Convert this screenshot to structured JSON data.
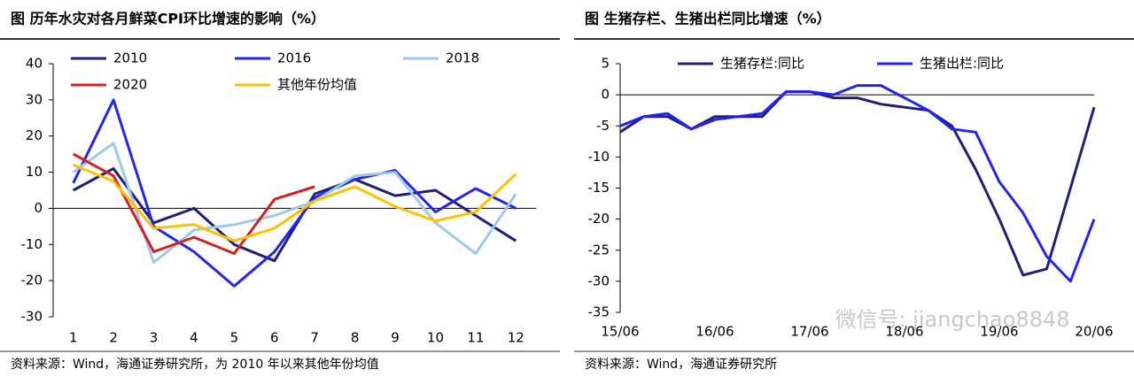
{
  "chart_data": [
    {
      "type": "line",
      "title": "图 历年水灾对各月鲜菜CPI环比增速的影响（%）",
      "categories": [
        "1",
        "2",
        "3",
        "4",
        "5",
        "6",
        "7",
        "8",
        "9",
        "10",
        "11",
        "12"
      ],
      "series": [
        {
          "name": "2010",
          "color": "#1f1f7a",
          "values": [
            5,
            11,
            -4,
            0,
            -10,
            -14.5,
            4,
            8,
            3.5,
            5,
            -2,
            -9
          ]
        },
        {
          "name": "2016",
          "color": "#2424f0",
          "values": [
            7,
            30,
            -5,
            -12,
            -21.5,
            -12,
            3,
            8,
            10.5,
            -1,
            5.5,
            0
          ]
        },
        {
          "name": "2018",
          "color": "#9ecae8",
          "values": [
            10,
            18,
            -15,
            -6,
            -4.5,
            -2,
            2,
            9,
            10,
            -4,
            -12.5,
            4
          ]
        },
        {
          "name": "2020",
          "color": "#d42020",
          "values": [
            15,
            9,
            -12,
            -8,
            -12.5,
            2.5,
            6,
            null,
            null,
            null,
            null,
            null
          ]
        },
        {
          "name": "其他年份均值",
          "color": "#ffc000",
          "values": [
            12,
            7.5,
            -5.5,
            -4.5,
            -9,
            -5.5,
            2,
            6,
            0.5,
            -3.5,
            -1,
            9.5
          ]
        }
      ],
      "ylim": [
        -30,
        40
      ],
      "yticks": [
        -30,
        -20,
        -10,
        0,
        10,
        20,
        30,
        40
      ],
      "source": "资料来源：Wind，海通证券研究所，为 2010 年以来其他年份均值"
    },
    {
      "type": "line",
      "title": "图 生猪存栏、生猪出栏同比增速（%）",
      "categories": [
        "15/06",
        null,
        null,
        null,
        "16/06",
        null,
        null,
        null,
        "17/06",
        null,
        null,
        null,
        "18/06",
        null,
        null,
        null,
        "19/06",
        null,
        null,
        null,
        "20/06"
      ],
      "series": [
        {
          "name": "生猪存栏:同比",
          "color": "#1f1f7a",
          "values": [
            -6,
            -3.5,
            -3.5,
            -5.5,
            -3.5,
            -3.5,
            -3.5,
            0.5,
            0.5,
            -0.5,
            -0.5,
            -1.5,
            -2,
            -2.5,
            -5,
            -12,
            -20,
            -29,
            -28,
            -15,
            -2
          ]
        },
        {
          "name": "生猪出栏:同比",
          "color": "#2424f0",
          "values": [
            -5,
            -3.5,
            -3,
            -5.5,
            -4,
            -3.5,
            -3,
            0.5,
            0.5,
            0,
            1.5,
            1.5,
            -0.5,
            -2.5,
            -5.5,
            -6,
            -14,
            -19,
            -26,
            -30,
            -20
          ]
        }
      ],
      "ylim": [
        -35,
        5
      ],
      "yticks": [
        -35,
        -30,
        -25,
        -20,
        -15,
        -10,
        -5,
        0,
        5
      ],
      "source": "资料来源：Wind，海通证券研究所",
      "watermark": "微信号: jiangchao8848"
    }
  ]
}
